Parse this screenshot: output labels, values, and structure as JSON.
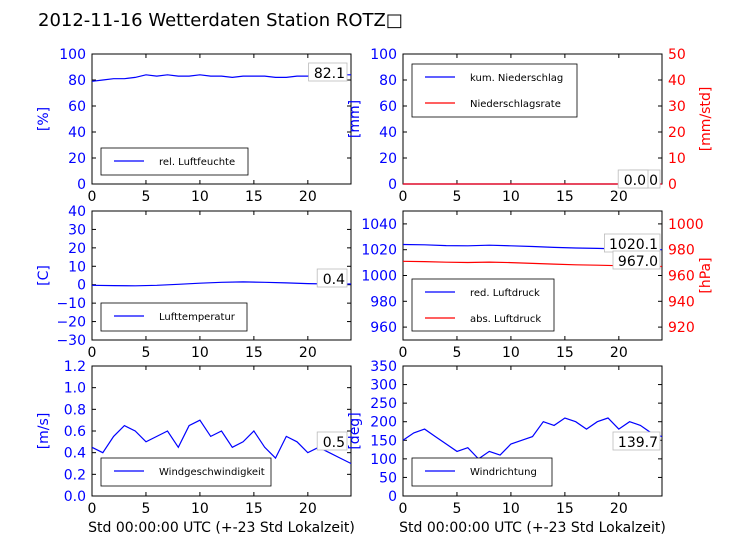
{
  "title": "2012-11-16 Wetterdaten Station ROTZ□",
  "colors": {
    "primary": "#0000ff",
    "secondary": "#ff0000",
    "text": "#000000"
  },
  "chart_data": [
    {
      "type": "line",
      "xlabel": "",
      "ylabel": "[%]",
      "xlim": [
        0,
        24
      ],
      "ylim": [
        0,
        100
      ],
      "xticks": [
        0,
        5,
        10,
        15,
        20
      ],
      "yticks": [
        0,
        20,
        40,
        60,
        80,
        100
      ],
      "legend": {
        "placement": "bottom-left",
        "entries": [
          "rel. Luftfeuchte"
        ]
      },
      "annotations": [
        "82.1"
      ],
      "series": [
        {
          "name": "rel. Luftfeuchte",
          "color": "#0000ff",
          "x": [
            0,
            1,
            2,
            3,
            4,
            5,
            6,
            7,
            8,
            9,
            10,
            11,
            12,
            13,
            14,
            15,
            16,
            17,
            18,
            19,
            20,
            21,
            22,
            23,
            24
          ],
          "y": [
            79,
            80,
            81,
            81,
            82,
            84,
            83,
            84,
            83,
            83,
            84,
            83,
            83,
            82,
            83,
            83,
            83,
            82,
            82,
            83,
            83,
            84,
            83,
            84,
            84
          ]
        }
      ]
    },
    {
      "type": "line",
      "xlabel": "",
      "ylabel": "[mm]",
      "ylabel2": "[mm/std]",
      "xlim": [
        0,
        24
      ],
      "ylim": [
        0,
        100
      ],
      "ylim2": [
        0,
        50
      ],
      "xticks": [
        0,
        5,
        10,
        15,
        20
      ],
      "yticks": [
        0,
        20,
        40,
        60,
        80,
        100
      ],
      "yticks2": [
        0,
        10,
        20,
        30,
        40,
        50
      ],
      "legend": {
        "placement": "top-left",
        "entries": [
          "kum. Niederschlag",
          "Niederschlagsrate"
        ]
      },
      "annotations": [
        "0.0",
        "0.0"
      ],
      "series": [
        {
          "name": "kum. Niederschlag",
          "color": "#0000ff",
          "axis": "left",
          "x": [
            0,
            24
          ],
          "y": [
            0,
            0
          ]
        },
        {
          "name": "Niederschlagsrate",
          "color": "#ff0000",
          "axis": "right",
          "x": [
            0,
            24
          ],
          "y": [
            0,
            0
          ]
        }
      ]
    },
    {
      "type": "line",
      "xlabel": "",
      "ylabel": "[C]",
      "xlim": [
        0,
        24
      ],
      "ylim": [
        -30,
        40
      ],
      "xticks": [
        0,
        5,
        10,
        15,
        20
      ],
      "yticks": [
        -30,
        -20,
        -10,
        0,
        10,
        20,
        30,
        40
      ],
      "legend": {
        "placement": "bottom-left",
        "entries": [
          "Lufttemperatur"
        ]
      },
      "annotations": [
        "0.4"
      ],
      "series": [
        {
          "name": "Lufttemperatur",
          "color": "#0000ff",
          "x": [
            0,
            2,
            4,
            6,
            8,
            10,
            12,
            14,
            16,
            18,
            20,
            22,
            24
          ],
          "y": [
            -0.3,
            -0.5,
            -0.6,
            -0.3,
            0.2,
            0.8,
            1.3,
            1.5,
            1.3,
            1.0,
            0.6,
            0.4,
            0.4
          ]
        }
      ]
    },
    {
      "type": "line",
      "xlabel": "",
      "ylabel": "",
      "ylabel2": "[hPa]",
      "xlim": [
        0,
        24
      ],
      "ylim": [
        950,
        1050
      ],
      "ylim2": [
        910,
        1010
      ],
      "xticks": [
        0,
        5,
        10,
        15,
        20
      ],
      "yticks": [
        960,
        980,
        1000,
        1020,
        1040
      ],
      "yticks2": [
        920,
        940,
        960,
        980,
        1000
      ],
      "legend": {
        "placement": "bottom-left",
        "entries": [
          "red. Luftdruck",
          "abs. Luftdruck"
        ]
      },
      "annotations": [
        "1020.1",
        "967.0"
      ],
      "series": [
        {
          "name": "red. Luftdruck",
          "color": "#0000ff",
          "axis": "left",
          "x": [
            0,
            2,
            4,
            6,
            8,
            10,
            12,
            14,
            16,
            18,
            20,
            22,
            24
          ],
          "y": [
            1024,
            1023.8,
            1023.2,
            1023,
            1023.5,
            1023,
            1022.5,
            1021.8,
            1021.3,
            1021,
            1020.6,
            1020.3,
            1020.1
          ]
        },
        {
          "name": "abs. Luftdruck",
          "color": "#ff0000",
          "axis": "right",
          "x": [
            0,
            2,
            4,
            6,
            8,
            10,
            12,
            14,
            16,
            18,
            20,
            22,
            24
          ],
          "y": [
            971,
            970.8,
            970.3,
            970.1,
            970.4,
            970,
            969.4,
            968.8,
            968.3,
            968,
            967.6,
            967.2,
            967
          ]
        }
      ]
    },
    {
      "type": "line",
      "xlabel": "Std 00:00:00 UTC (+-23 Std Lokalzeit)",
      "ylabel": "[m/s]",
      "xlim": [
        0,
        24
      ],
      "ylim": [
        0,
        1.2
      ],
      "xticks": [
        0,
        5,
        10,
        15,
        20
      ],
      "yticks": [
        0.0,
        0.2,
        0.4,
        0.6,
        0.8,
        1.0,
        1.2
      ],
      "legend": {
        "placement": "bottom-left",
        "entries": [
          "Windgeschwindigkeit"
        ]
      },
      "annotations": [
        "0.5"
      ],
      "series": [
        {
          "name": "Windgeschwindigkeit",
          "color": "#0000ff",
          "x": [
            0,
            1,
            2,
            3,
            4,
            5,
            6,
            7,
            8,
            9,
            10,
            11,
            12,
            13,
            14,
            15,
            16,
            17,
            18,
            19,
            20,
            21,
            22,
            23,
            24
          ],
          "y": [
            0.45,
            0.4,
            0.55,
            0.65,
            0.6,
            0.5,
            0.55,
            0.6,
            0.45,
            0.65,
            0.7,
            0.55,
            0.6,
            0.45,
            0.5,
            0.6,
            0.45,
            0.35,
            0.55,
            0.5,
            0.4,
            0.45,
            0.4,
            0.35,
            0.3
          ]
        }
      ]
    },
    {
      "type": "line",
      "xlabel": "Std 00:00:00 UTC (+-23 Std Lokalzeit)",
      "ylabel": "[deg]",
      "xlim": [
        0,
        24
      ],
      "ylim": [
        0,
        350
      ],
      "xticks": [
        0,
        5,
        10,
        15,
        20
      ],
      "yticks": [
        0,
        50,
        100,
        150,
        200,
        250,
        300,
        350
      ],
      "legend": {
        "placement": "bottom-left",
        "entries": [
          "Windrichtung"
        ]
      },
      "annotations": [
        "139.7"
      ],
      "series": [
        {
          "name": "Windrichtung",
          "color": "#0000ff",
          "x": [
            0,
            1,
            2,
            3,
            4,
            5,
            6,
            7,
            8,
            9,
            10,
            11,
            12,
            13,
            14,
            15,
            16,
            17,
            18,
            19,
            20,
            21,
            22,
            23,
            24
          ],
          "y": [
            150,
            170,
            180,
            160,
            140,
            120,
            130,
            100,
            120,
            110,
            140,
            150,
            160,
            200,
            190,
            210,
            200,
            180,
            200,
            210,
            180,
            200,
            190,
            170,
            160
          ]
        }
      ]
    }
  ]
}
